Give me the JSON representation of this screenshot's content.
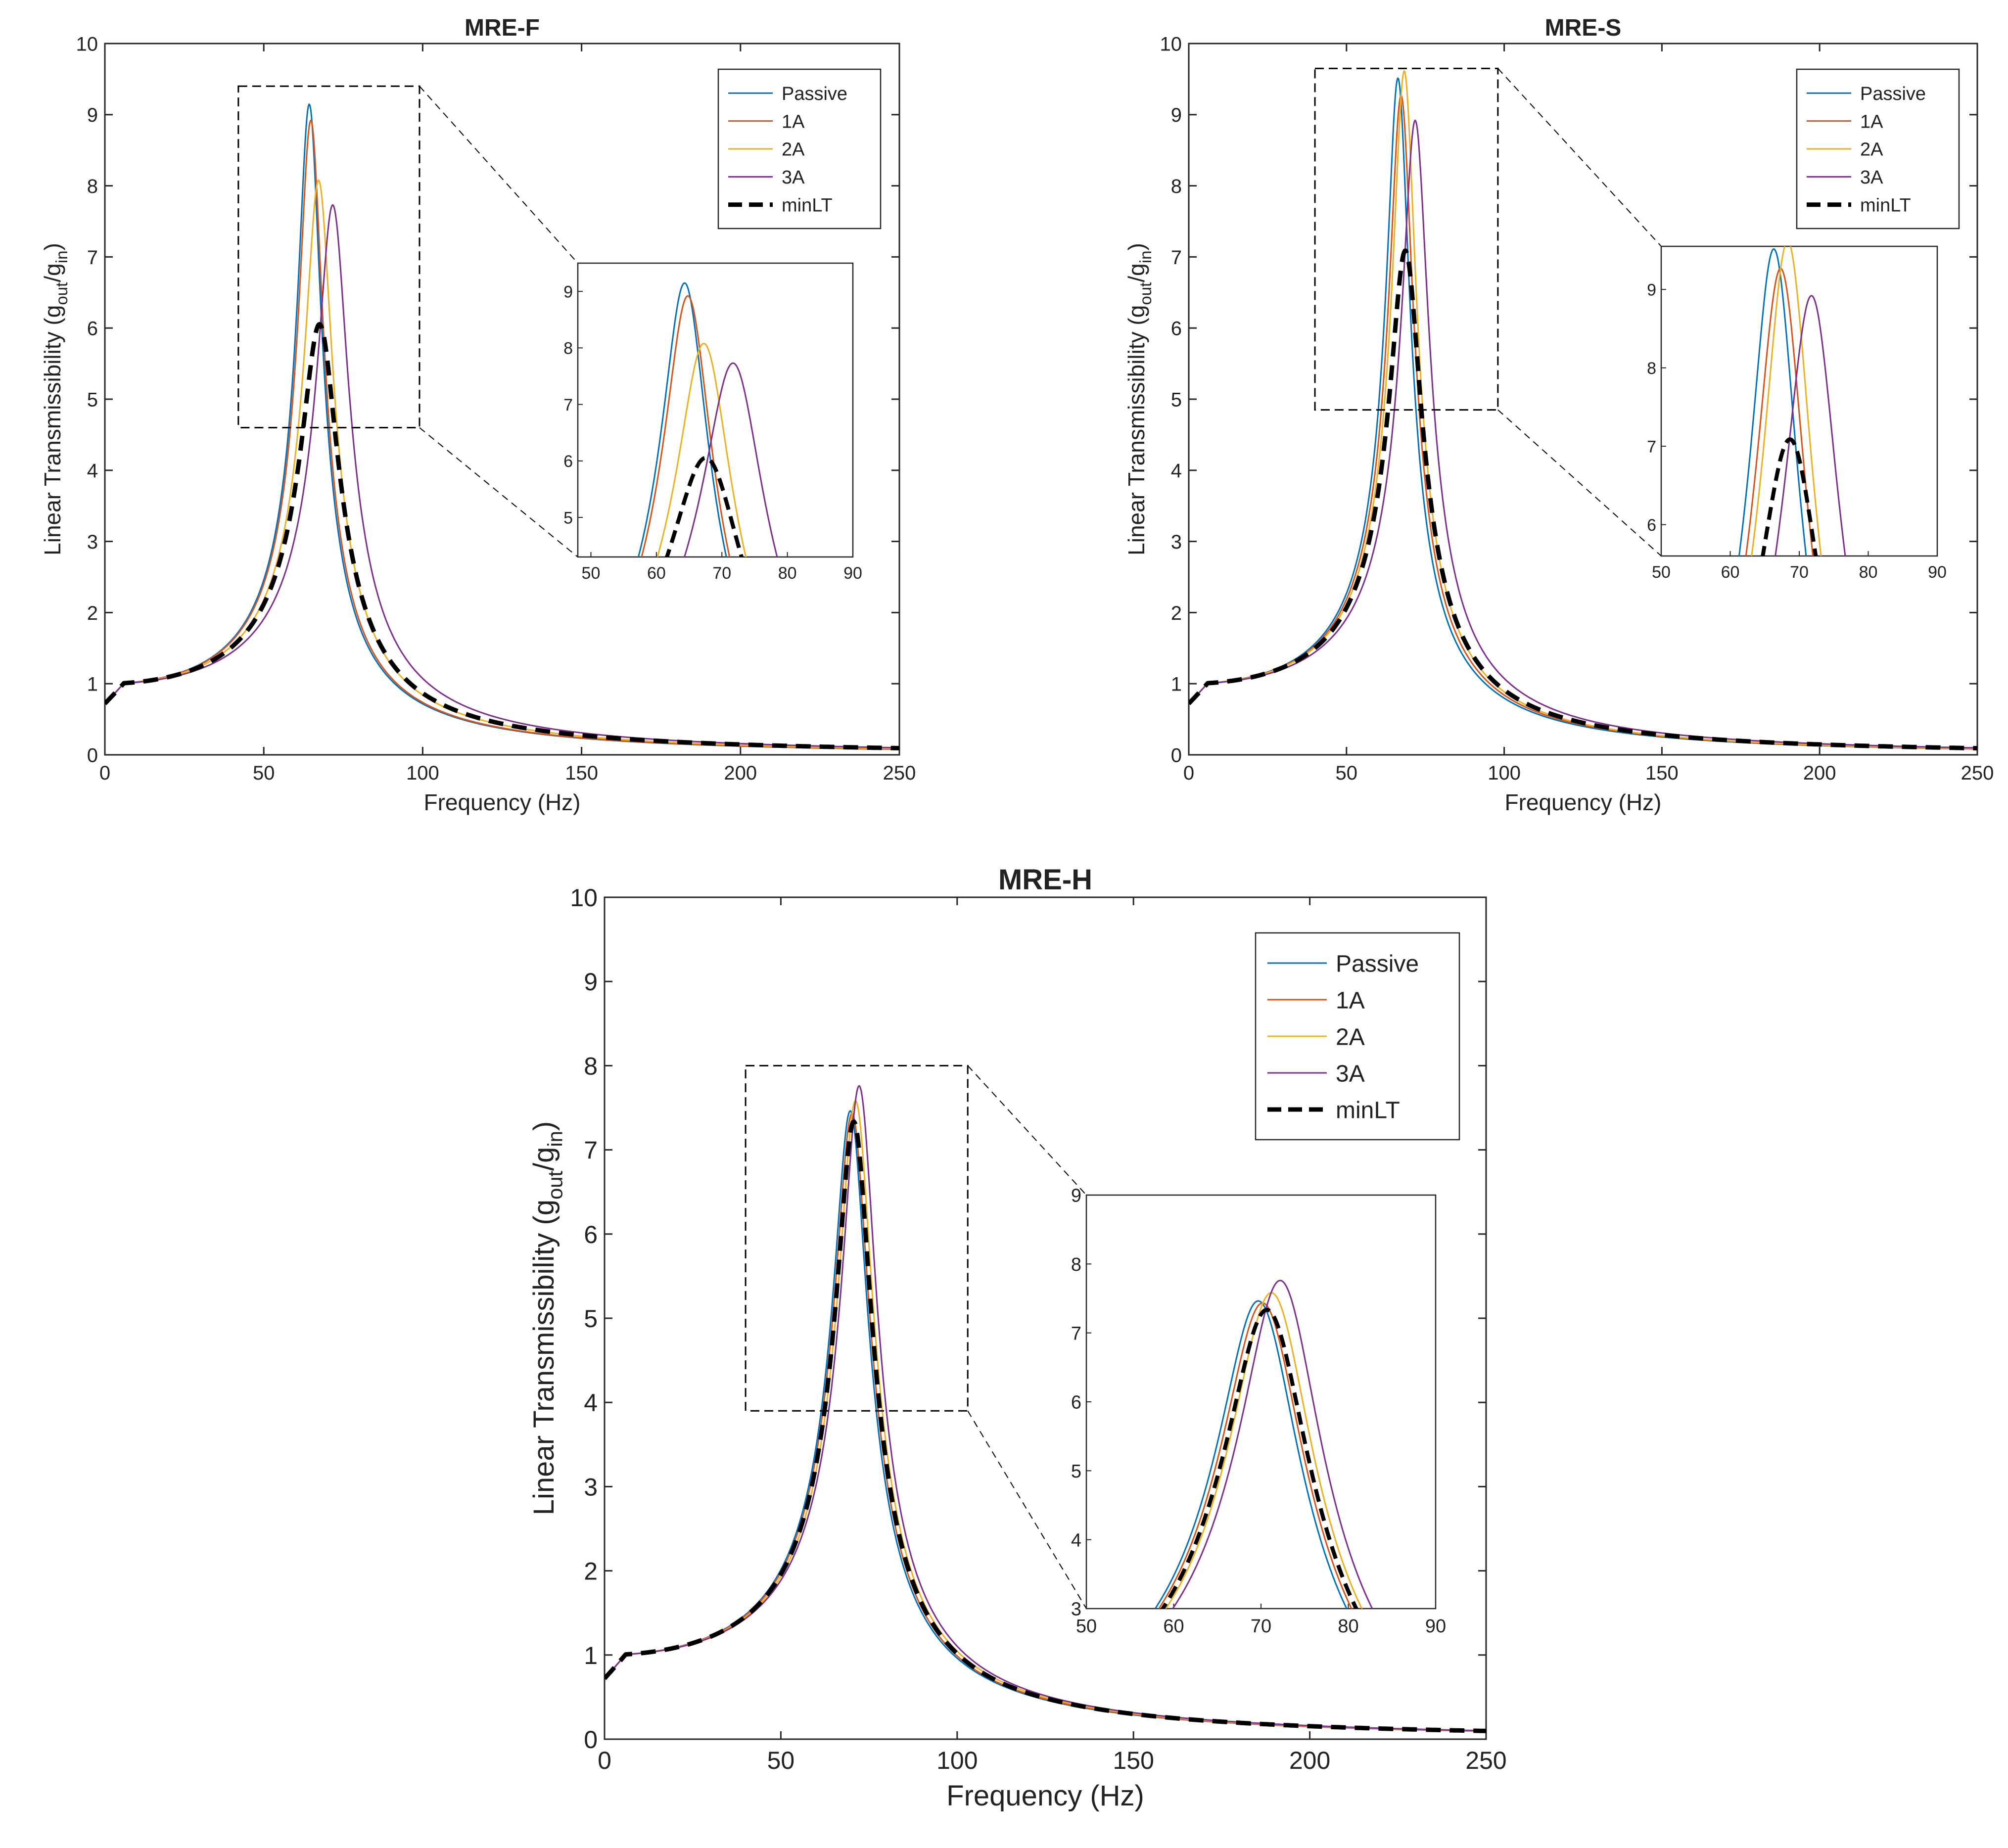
{
  "chart_data": [
    {
      "type": "line",
      "title": "MRE-F",
      "xlabel": "Frequency (Hz)",
      "ylabel_main": "Linear Transmissibility (g",
      "ylabel_sub1": "out",
      "ylabel_mid": "/g",
      "ylabel_sub2": "in",
      "ylabel_end": ")",
      "xlim": [
        0,
        250
      ],
      "ylim": [
        0,
        10
      ],
      "xticks": [
        0,
        50,
        100,
        150,
        200,
        250
      ],
      "yticks": [
        0,
        1,
        2,
        3,
        4,
        5,
        6,
        7,
        8,
        9,
        10
      ],
      "legend": [
        "Passive",
        "1A",
        "2A",
        "3A",
        "minLT"
      ],
      "peaks": [
        {
          "name": "Passive",
          "f0": 64.5,
          "peak": 9.08
        },
        {
          "name": "1A",
          "f0": 65.0,
          "peak": 8.85
        },
        {
          "name": "2A",
          "f0": 67.5,
          "peak": 8.0
        },
        {
          "name": "3A",
          "f0": 72.0,
          "peak": 7.65
        },
        {
          "name": "minLT",
          "f0": 68.0,
          "peak": 5.95
        }
      ],
      "zoom_box": {
        "xlim": [
          42,
          99
        ],
        "ylim": [
          4.6,
          9.4
        ]
      },
      "inset": {
        "xlim": [
          48,
          90
        ],
        "ylim": [
          4.3,
          9.5
        ],
        "xticks": [
          50,
          60,
          70,
          80,
          90
        ],
        "yticks": [
          5,
          6,
          7,
          8,
          9
        ]
      }
    },
    {
      "type": "line",
      "title": "MRE-S",
      "xlabel": "Frequency (Hz)",
      "ylabel_main": "Linear Transmissibility (g",
      "ylabel_sub1": "out",
      "ylabel_mid": "/g",
      "ylabel_sub2": "in",
      "ylabel_end": ")",
      "xlim": [
        0,
        250
      ],
      "ylim": [
        0,
        10
      ],
      "xticks": [
        0,
        50,
        100,
        150,
        200,
        250
      ],
      "yticks": [
        0,
        1,
        2,
        3,
        4,
        5,
        6,
        7,
        8,
        9,
        10
      ],
      "legend": [
        "Passive",
        "1A",
        "2A",
        "3A",
        "minLT"
      ],
      "peaks": [
        {
          "name": "Passive",
          "f0": 66.5,
          "peak": 9.45
        },
        {
          "name": "1A",
          "f0": 67.5,
          "peak": 9.2
        },
        {
          "name": "2A",
          "f0": 68.5,
          "peak": 9.55
        },
        {
          "name": "3A",
          "f0": 72.0,
          "peak": 8.85
        },
        {
          "name": "minLT",
          "f0": 69.0,
          "peak": 7.0
        }
      ],
      "zoom_box": {
        "xlim": [
          40,
          98
        ],
        "ylim": [
          4.85,
          9.65
        ]
      },
      "inset": {
        "xlim": [
          50,
          90
        ],
        "ylim": [
          5.6,
          9.55
        ],
        "xticks": [
          50,
          60,
          70,
          80,
          90
        ],
        "yticks": [
          6,
          7,
          8,
          9
        ]
      }
    },
    {
      "type": "line",
      "title": "MRE-H",
      "xlabel": "Frequency (Hz)",
      "ylabel_main": "Linear Transmissibility (g",
      "ylabel_sub1": "out",
      "ylabel_mid": "/g",
      "ylabel_sub2": "in",
      "ylabel_end": ")",
      "xlim": [
        0,
        250
      ],
      "ylim": [
        0,
        10
      ],
      "xticks": [
        0,
        50,
        100,
        150,
        200,
        250
      ],
      "yticks": [
        0,
        1,
        2,
        3,
        4,
        5,
        6,
        7,
        8,
        9,
        10
      ],
      "legend": [
        "Passive",
        "1A",
        "2A",
        "3A",
        "minLT"
      ],
      "peaks": [
        {
          "name": "Passive",
          "f0": 70.0,
          "peak": 7.38
        },
        {
          "name": "1A",
          "f0": 70.5,
          "peak": 7.35
        },
        {
          "name": "2A",
          "f0": 71.5,
          "peak": 7.5
        },
        {
          "name": "3A",
          "f0": 72.5,
          "peak": 7.68
        },
        {
          "name": "minLT",
          "f0": 71.0,
          "peak": 7.25
        }
      ],
      "zoom_box": {
        "xlim": [
          40,
          103
        ],
        "ylim": [
          3.9,
          8.0
        ]
      },
      "inset": {
        "xlim": [
          50,
          90
        ],
        "ylim": [
          3,
          9
        ],
        "xticks": [
          50,
          60,
          70,
          80,
          90
        ],
        "yticks": [
          3,
          4,
          5,
          6,
          7,
          8,
          9
        ]
      }
    }
  ],
  "colors": {
    "Passive": "#0072BD",
    "1A": "#D95319",
    "2A": "#EDB120",
    "3A": "#7E2F8E",
    "minLT": "#000000"
  }
}
